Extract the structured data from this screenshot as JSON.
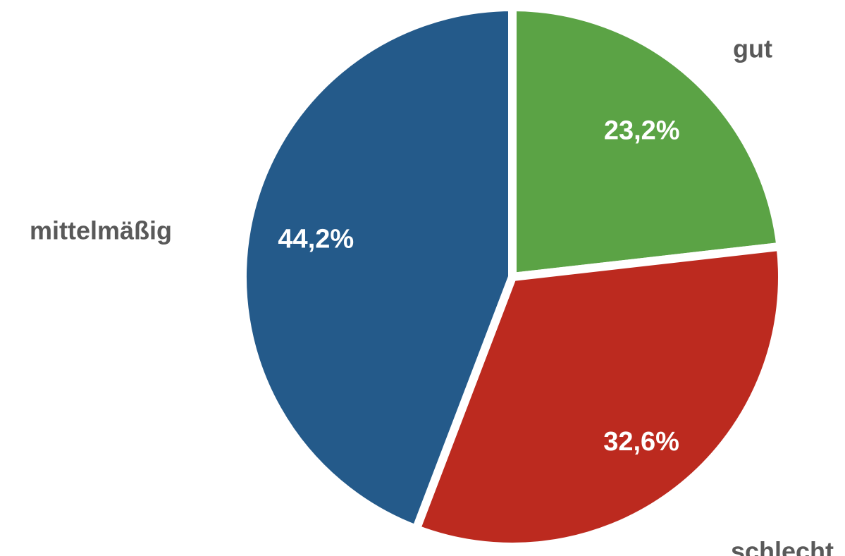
{
  "chart_data": {
    "type": "pie",
    "categories": [
      "gut",
      "schlecht",
      "mittelmäßig"
    ],
    "values": [
      23.2,
      32.6,
      44.2
    ],
    "data_labels": [
      "23,2%",
      "32,6%",
      "44,2%"
    ],
    "colors": [
      "#5ba345",
      "#bc2a1f",
      "#245a8a"
    ],
    "title": "",
    "legend": "none",
    "start_angle": "12 o'clock",
    "direction": "clockwise"
  }
}
